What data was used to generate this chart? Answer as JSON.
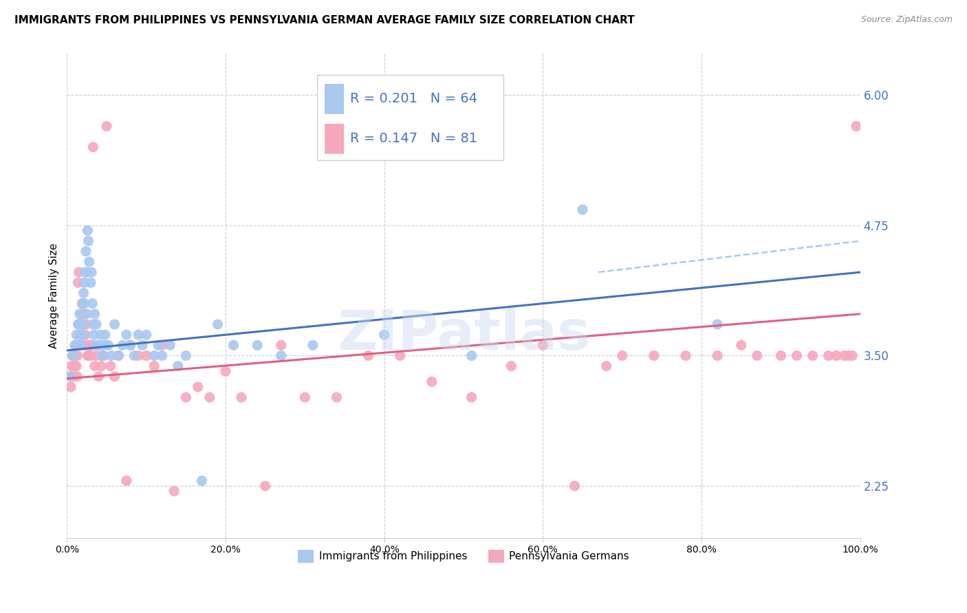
{
  "title": "IMMIGRANTS FROM PHILIPPINES VS PENNSYLVANIA GERMAN AVERAGE FAMILY SIZE CORRELATION CHART",
  "source": "Source: ZipAtlas.com",
  "ylabel": "Average Family Size",
  "yticks": [
    2.25,
    3.5,
    4.75,
    6.0
  ],
  "xlim": [
    0.0,
    1.0
  ],
  "ylim": [
    1.75,
    6.4
  ],
  "series1_color": "#A8C8F0",
  "series2_color": "#F5A8BC",
  "trend1_color": "#4472C4",
  "trend2_color": "#E06080",
  "dashed_color": "#A8C8F0",
  "R1": 0.201,
  "N1": 64,
  "R2": 0.147,
  "N2": 81,
  "legend_label1": "Immigrants from Philippines",
  "legend_label2": "Pennsylvania Germans",
  "watermark": "ZIPatlas",
  "legend_text_color": "#4472C4",
  "title_fontsize": 11,
  "source_fontsize": 9,
  "series1_x": [
    0.005,
    0.008,
    0.01,
    0.012,
    0.014,
    0.015,
    0.016,
    0.016,
    0.017,
    0.018,
    0.018,
    0.019,
    0.02,
    0.02,
    0.021,
    0.022,
    0.022,
    0.023,
    0.024,
    0.025,
    0.025,
    0.026,
    0.027,
    0.028,
    0.03,
    0.031,
    0.032,
    0.033,
    0.034,
    0.035,
    0.036,
    0.037,
    0.04,
    0.042,
    0.044,
    0.046,
    0.048,
    0.052,
    0.056,
    0.06,
    0.065,
    0.07,
    0.075,
    0.08,
    0.085,
    0.09,
    0.095,
    0.1,
    0.11,
    0.115,
    0.12,
    0.13,
    0.14,
    0.15,
    0.17,
    0.19,
    0.21,
    0.24,
    0.27,
    0.31,
    0.4,
    0.51,
    0.65,
    0.82
  ],
  "series1_y": [
    3.3,
    3.5,
    3.6,
    3.7,
    3.8,
    3.6,
    3.7,
    3.9,
    3.8,
    3.7,
    3.6,
    3.8,
    4.0,
    3.7,
    4.1,
    4.2,
    4.0,
    4.3,
    4.5,
    4.3,
    3.9,
    4.7,
    4.6,
    4.4,
    4.2,
    4.3,
    4.0,
    3.8,
    3.7,
    3.9,
    3.6,
    3.8,
    3.6,
    3.7,
    3.5,
    3.6,
    3.7,
    3.6,
    3.5,
    3.8,
    3.5,
    3.6,
    3.7,
    3.6,
    3.5,
    3.7,
    3.6,
    3.7,
    3.5,
    3.6,
    3.5,
    3.6,
    3.4,
    3.5,
    2.3,
    3.8,
    3.6,
    3.6,
    3.5,
    3.6,
    3.7,
    3.5,
    4.9,
    3.8
  ],
  "series2_x": [
    0.004,
    0.005,
    0.006,
    0.007,
    0.008,
    0.009,
    0.01,
    0.011,
    0.012,
    0.013,
    0.013,
    0.014,
    0.015,
    0.015,
    0.016,
    0.016,
    0.017,
    0.018,
    0.019,
    0.02,
    0.021,
    0.022,
    0.022,
    0.023,
    0.024,
    0.025,
    0.026,
    0.027,
    0.028,
    0.029,
    0.03,
    0.031,
    0.033,
    0.035,
    0.037,
    0.04,
    0.043,
    0.046,
    0.05,
    0.055,
    0.06,
    0.065,
    0.075,
    0.08,
    0.09,
    0.1,
    0.11,
    0.12,
    0.135,
    0.15,
    0.165,
    0.18,
    0.2,
    0.22,
    0.25,
    0.27,
    0.3,
    0.34,
    0.38,
    0.42,
    0.46,
    0.51,
    0.56,
    0.6,
    0.64,
    0.68,
    0.7,
    0.74,
    0.78,
    0.82,
    0.85,
    0.87,
    0.9,
    0.92,
    0.94,
    0.96,
    0.97,
    0.98,
    0.985,
    0.99,
    0.995
  ],
  "series2_y": [
    3.3,
    3.2,
    3.4,
    3.5,
    3.3,
    3.4,
    3.5,
    3.6,
    3.4,
    3.3,
    3.5,
    4.2,
    4.3,
    3.8,
    3.6,
    3.7,
    3.8,
    3.9,
    4.0,
    3.7,
    3.8,
    3.9,
    3.6,
    3.7,
    3.8,
    3.6,
    3.5,
    3.6,
    3.5,
    3.6,
    3.5,
    3.6,
    5.5,
    3.4,
    3.5,
    3.3,
    3.4,
    3.5,
    5.7,
    3.4,
    3.3,
    3.5,
    2.3,
    3.6,
    3.5,
    3.5,
    3.4,
    3.6,
    2.2,
    3.1,
    3.2,
    3.1,
    3.35,
    3.1,
    2.25,
    3.6,
    3.1,
    3.1,
    3.5,
    3.5,
    3.25,
    3.1,
    3.4,
    3.6,
    2.25,
    3.4,
    3.5,
    3.5,
    3.5,
    3.5,
    3.6,
    3.5,
    3.5,
    3.5,
    3.5,
    3.5,
    3.5,
    3.5,
    3.5,
    3.5,
    5.7
  ]
}
